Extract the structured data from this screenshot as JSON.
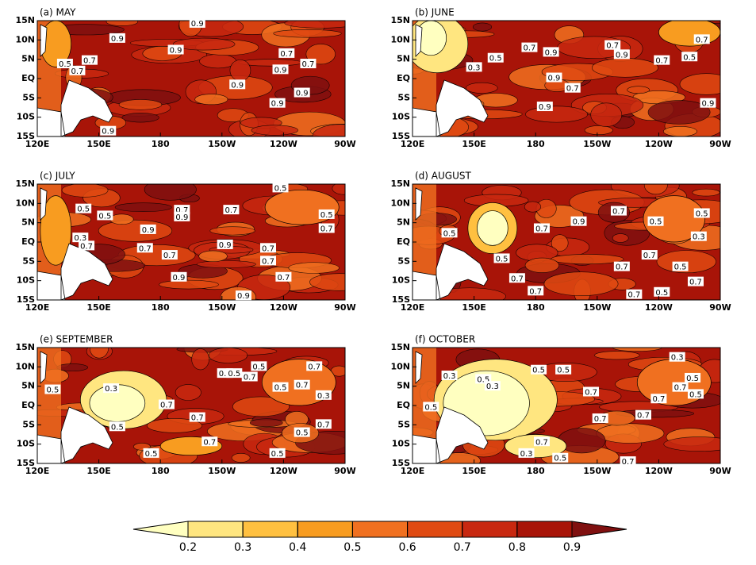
{
  "panels": [
    {
      "title": "(a) MAY",
      "contour_labels": [
        0.9,
        0.9,
        0.9,
        0.7,
        0.7,
        0.5,
        0.7,
        0.7,
        0.9,
        0.9,
        0.9,
        0.9,
        0.9
      ]
    },
    {
      "title": "(b) JUNE",
      "contour_labels": [
        0.7,
        0.5,
        0.9,
        0.3,
        0.7,
        0.9,
        0.7,
        0.5,
        0.7,
        0.9,
        0.7,
        0.9,
        0.9
      ]
    },
    {
      "title": "(c) JULY",
      "contour_labels": [
        0.5,
        0.5,
        0.3,
        0.7,
        0.7,
        0.9,
        0.9,
        0.7,
        0.5,
        0.5,
        0.7,
        0.7,
        0.7,
        0.9,
        0.7,
        0.7,
        0.9,
        0.7,
        0.9
      ]
    },
    {
      "title": "(d) AUGUST",
      "contour_labels": [
        0.5,
        0.7,
        0.9,
        0.7,
        0.5,
        0.5,
        0.3,
        0.5,
        0.7,
        0.7,
        0.7,
        0.7,
        0.5,
        0.7,
        0.7,
        0.5
      ]
    },
    {
      "title": "(e) SEPTEMBER",
      "contour_labels": [
        0.5,
        0.3,
        0.5,
        0.5,
        0.7,
        0.7,
        0.7,
        0.5,
        0.5,
        0.7,
        0.5,
        0.5,
        0.7,
        0.7,
        0.3,
        0.7,
        0.5,
        0.5
      ]
    },
    {
      "title": "(f) OCTOBER",
      "contour_labels": [
        0.3,
        0.5,
        0.5,
        0.3,
        0.5,
        0.5,
        0.7,
        0.7,
        0.7,
        0.7,
        0.3,
        0.5,
        0.7,
        0.5,
        0.7,
        0.3,
        0.5,
        0.7
      ]
    }
  ],
  "lat_ticks": [
    "15N",
    "10N",
    "5N",
    "EQ",
    "5S",
    "10S",
    "15S"
  ],
  "lon_ticks": [
    "120E",
    "150E",
    "180",
    "150W",
    "120W",
    "90W"
  ],
  "colorbar": {
    "ticks": [
      0.2,
      0.3,
      0.4,
      0.5,
      0.6,
      0.7,
      0.8,
      0.9
    ],
    "colors": [
      "#ffffc0",
      "#ffe680",
      "#ffc040",
      "#f89c20",
      "#f07020",
      "#e04a12",
      "#c82810",
      "#a81408",
      "#801010"
    ]
  }
}
